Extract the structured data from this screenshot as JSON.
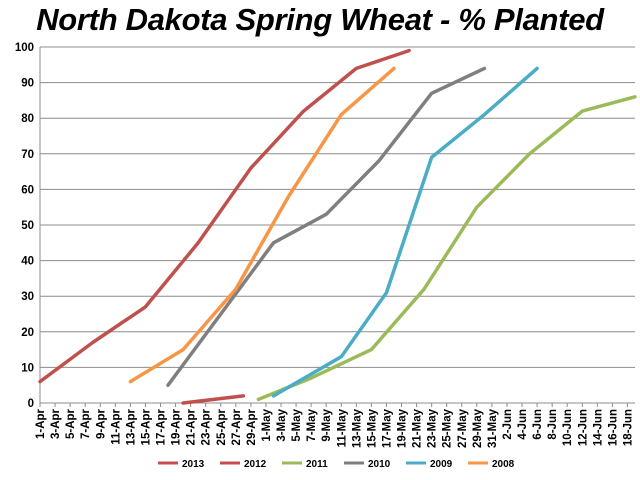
{
  "chart_data": {
    "type": "line",
    "title": "North Dakota Spring Wheat - % Planted",
    "xlabel": "",
    "ylabel": "",
    "ylim": [
      0,
      100
    ],
    "yticks": [
      0,
      10,
      20,
      30,
      40,
      50,
      60,
      70,
      80,
      90,
      100
    ],
    "categories": [
      "1-Apr",
      "3-Apr",
      "5-Apr",
      "7-Apr",
      "9-Apr",
      "11-Apr",
      "13-Apr",
      "15-Apr",
      "17-Apr",
      "19-Apr",
      "21-Apr",
      "23-Apr",
      "25-Apr",
      "27-Apr",
      "29-Apr",
      "1-May",
      "3-May",
      "5-May",
      "7-May",
      "9-May",
      "11-May",
      "13-May",
      "15-May",
      "17-May",
      "19-May",
      "21-May",
      "23-May",
      "25-May",
      "27-May",
      "29-May",
      "31-May",
      "2-Jun",
      "4-Jun",
      "6-Jun",
      "8-Jun",
      "10-Jun",
      "12-Jun",
      "14-Jun",
      "16-Jun",
      "18-Jun"
    ],
    "grid": "horizontal",
    "legend": "bottom",
    "series": [
      {
        "name": "2013",
        "color": "#C0504D",
        "points": [
          [
            "1-Apr",
            6
          ],
          [
            "8-Apr",
            17
          ],
          [
            "15-Apr",
            27
          ],
          [
            "22-Apr",
            45
          ],
          [
            "29-Apr",
            66
          ],
          [
            "6-May",
            82
          ],
          [
            "13-May",
            94
          ],
          [
            "20-May",
            99
          ]
        ]
      },
      {
        "name": "2012",
        "color": "#C0504D",
        "points": [
          [
            "20-Apr",
            0
          ],
          [
            "28-Apr",
            2
          ]
        ]
      },
      {
        "name": "2011",
        "color": "#9BBB59",
        "points": [
          [
            "30-Apr",
            1
          ],
          [
            "7-May",
            7
          ],
          [
            "15-May",
            15
          ],
          [
            "22-May",
            32
          ],
          [
            "29-May",
            55
          ],
          [
            "5-Jun",
            70
          ],
          [
            "12-Jun",
            82
          ],
          [
            "19-Jun",
            86
          ]
        ]
      },
      {
        "name": "2010",
        "color": "#7F7F7F",
        "points": [
          [
            "18-Apr",
            5
          ],
          [
            "25-Apr",
            25
          ],
          [
            "2-May",
            45
          ],
          [
            "9-May",
            53
          ],
          [
            "16-May",
            68
          ],
          [
            "23-May",
            87
          ],
          [
            "30-May",
            94
          ]
        ]
      },
      {
        "name": "2009",
        "color": "#4BACC6",
        "points": [
          [
            "2-May",
            2
          ],
          [
            "11-May",
            13
          ],
          [
            "17-May",
            31
          ],
          [
            "23-May",
            69
          ],
          [
            "30-May",
            81
          ],
          [
            "6-Jun",
            94
          ]
        ]
      },
      {
        "name": "2008",
        "color": "#F79646",
        "points": [
          [
            "13-Apr",
            6
          ],
          [
            "20-Apr",
            15
          ],
          [
            "27-Apr",
            32
          ],
          [
            "4-May",
            58
          ],
          [
            "11-May",
            81
          ],
          [
            "18-May",
            94
          ]
        ]
      }
    ]
  }
}
